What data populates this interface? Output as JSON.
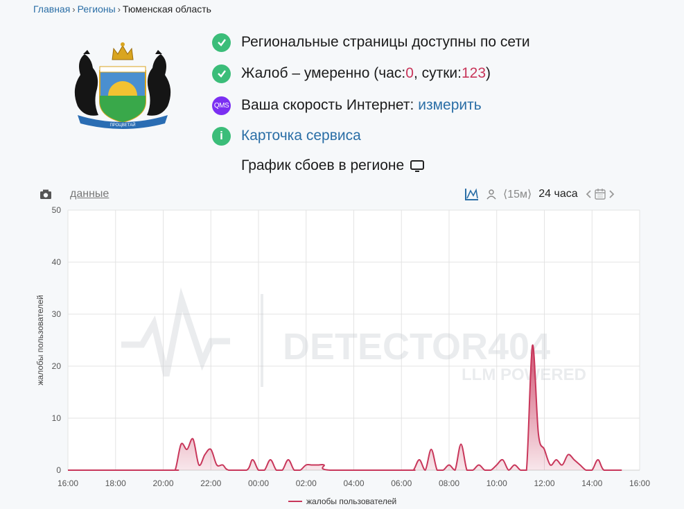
{
  "breadcrumb": {
    "home": "Главная",
    "regions": "Регионы",
    "current": "Тюменская область"
  },
  "emblem": {
    "ribbon_text": "ПРОЦВЕТАЙ"
  },
  "status": {
    "line1": "Региональные страницы доступны по сети",
    "line2_prefix": "Жалоб – умеренно (час: ",
    "hour_value": "0",
    "line2_mid": ", сутки: ",
    "day_value": "123",
    "line2_suffix": ")",
    "qms_badge": "QMS",
    "speed_prefix": "Ваша скорость Интернет: ",
    "speed_link": "измерить",
    "card_link": "Карточка сервиса",
    "info_badge": "i"
  },
  "graph_title": "График сбоев в регионе",
  "toolbar": {
    "data_link": "данные",
    "interval": "⟨15м⟩",
    "range": "24 часа"
  },
  "watermark": {
    "main": "DETECTOR404",
    "sub": "LLM POWERED"
  },
  "colors": {
    "accent": "#c8365a",
    "ok": "#3bbd79",
    "link": "#2a6ea6",
    "qms": "#7b2ff2"
  },
  "chart_data": {
    "type": "area",
    "ylabel": "жалобы пользователей",
    "ylim": [
      0,
      50
    ],
    "yticks": [
      0,
      10,
      20,
      30,
      40,
      50
    ],
    "xlim": [
      0,
      24
    ],
    "xticks": [
      "16:00",
      "18:00",
      "20:00",
      "22:00",
      "00:00",
      "02:00",
      "04:00",
      "06:00",
      "08:00",
      "10:00",
      "12:00",
      "14:00",
      "16:00"
    ],
    "series": [
      {
        "name": "жалобы пользователей",
        "points": [
          [
            0,
            0
          ],
          [
            4.25,
            0
          ],
          [
            4.5,
            0
          ],
          [
            4.75,
            5
          ],
          [
            5.0,
            4
          ],
          [
            5.25,
            6
          ],
          [
            5.5,
            1
          ],
          [
            5.75,
            3
          ],
          [
            6.0,
            4
          ],
          [
            6.25,
            1
          ],
          [
            6.5,
            1
          ],
          [
            6.75,
            0
          ],
          [
            7.5,
            0
          ],
          [
            7.75,
            2
          ],
          [
            8.0,
            0
          ],
          [
            8.25,
            0
          ],
          [
            8.5,
            2
          ],
          [
            8.75,
            0
          ],
          [
            9.0,
            0
          ],
          [
            9.25,
            2
          ],
          [
            9.5,
            0
          ],
          [
            9.75,
            0
          ],
          [
            10.0,
            1
          ],
          [
            10.25,
            1
          ],
          [
            10.5,
            1
          ],
          [
            10.75,
            1
          ],
          [
            11.0,
            0
          ],
          [
            14.25,
            0
          ],
          [
            14.5,
            0
          ],
          [
            14.75,
            2
          ],
          [
            15.0,
            0
          ],
          [
            15.25,
            4
          ],
          [
            15.5,
            0
          ],
          [
            15.75,
            0
          ],
          [
            16.0,
            1
          ],
          [
            16.25,
            0
          ],
          [
            16.5,
            5
          ],
          [
            16.75,
            0
          ],
          [
            17.0,
            0
          ],
          [
            17.25,
            1
          ],
          [
            17.5,
            0
          ],
          [
            17.75,
            0
          ],
          [
            18.0,
            1
          ],
          [
            18.25,
            2
          ],
          [
            18.5,
            0
          ],
          [
            18.75,
            1
          ],
          [
            19.0,
            0
          ],
          [
            19.25,
            0
          ],
          [
            19.5,
            24
          ],
          [
            19.75,
            7
          ],
          [
            20.0,
            4
          ],
          [
            20.25,
            1
          ],
          [
            20.5,
            2
          ],
          [
            20.75,
            1
          ],
          [
            21.0,
            3
          ],
          [
            21.25,
            2
          ],
          [
            21.5,
            1
          ],
          [
            21.75,
            0
          ],
          [
            22.0,
            0
          ],
          [
            22.25,
            2
          ],
          [
            22.5,
            0
          ],
          [
            23.0,
            0
          ],
          [
            23.25,
            0
          ]
        ]
      }
    ]
  }
}
